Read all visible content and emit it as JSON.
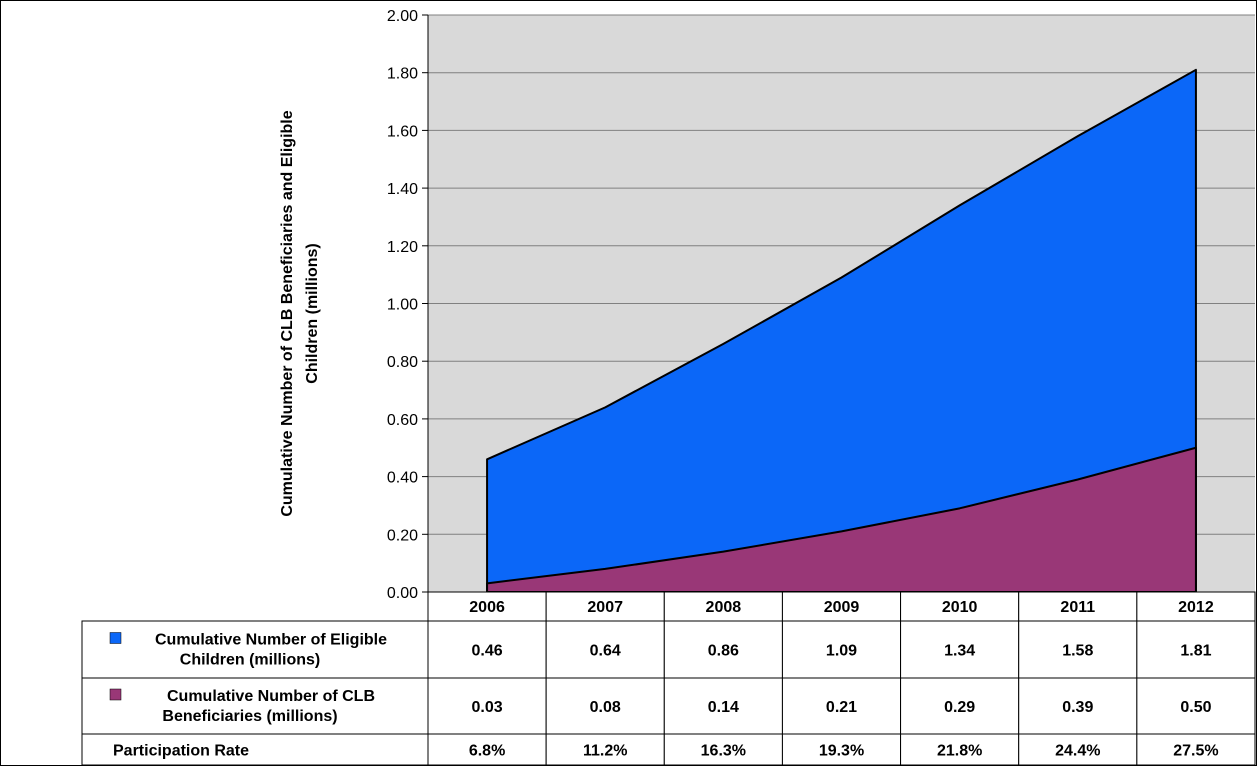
{
  "chart_data": {
    "type": "area",
    "ylabel_line1": "Cumulative Number of CLB Beneficiaries and Eligible",
    "ylabel_line2": "Children  (millions)",
    "ylim": [
      0,
      2.0
    ],
    "yticks": [
      "0.00",
      "0.20",
      "0.40",
      "0.60",
      "0.80",
      "1.00",
      "1.20",
      "1.40",
      "1.60",
      "1.80",
      "2.00"
    ],
    "categories": [
      "2006",
      "2007",
      "2008",
      "2009",
      "2010",
      "2011",
      "2012"
    ],
    "grid": true,
    "stacked": false,
    "series": [
      {
        "name_line1": "Cumulative Number of Eligible",
        "name_line2": "Children (millions)",
        "color": "#0B67F8",
        "values": [
          0.46,
          0.64,
          0.86,
          1.09,
          1.34,
          1.58,
          1.81
        ],
        "display": [
          "0.46",
          "0.64",
          "0.86",
          "1.09",
          "1.34",
          "1.58",
          "1.81"
        ]
      },
      {
        "name_line1": "Cumulative Number of CLB",
        "name_line2": "Beneficiaries (millions)",
        "color": "#993777",
        "values": [
          0.03,
          0.08,
          0.14,
          0.21,
          0.29,
          0.39,
          0.5
        ],
        "display": [
          "0.03",
          "0.08",
          "0.14",
          "0.21",
          "0.29",
          "0.39",
          "0.50"
        ]
      }
    ],
    "extra_rows": [
      {
        "label": "Participation Rate",
        "display": [
          "6.8%",
          "11.2%",
          "16.3%",
          "19.3%",
          "21.8%",
          "24.4%",
          "27.5%"
        ]
      }
    ],
    "plot_background": "#D9D9D9",
    "gridline_color": "#808080"
  }
}
